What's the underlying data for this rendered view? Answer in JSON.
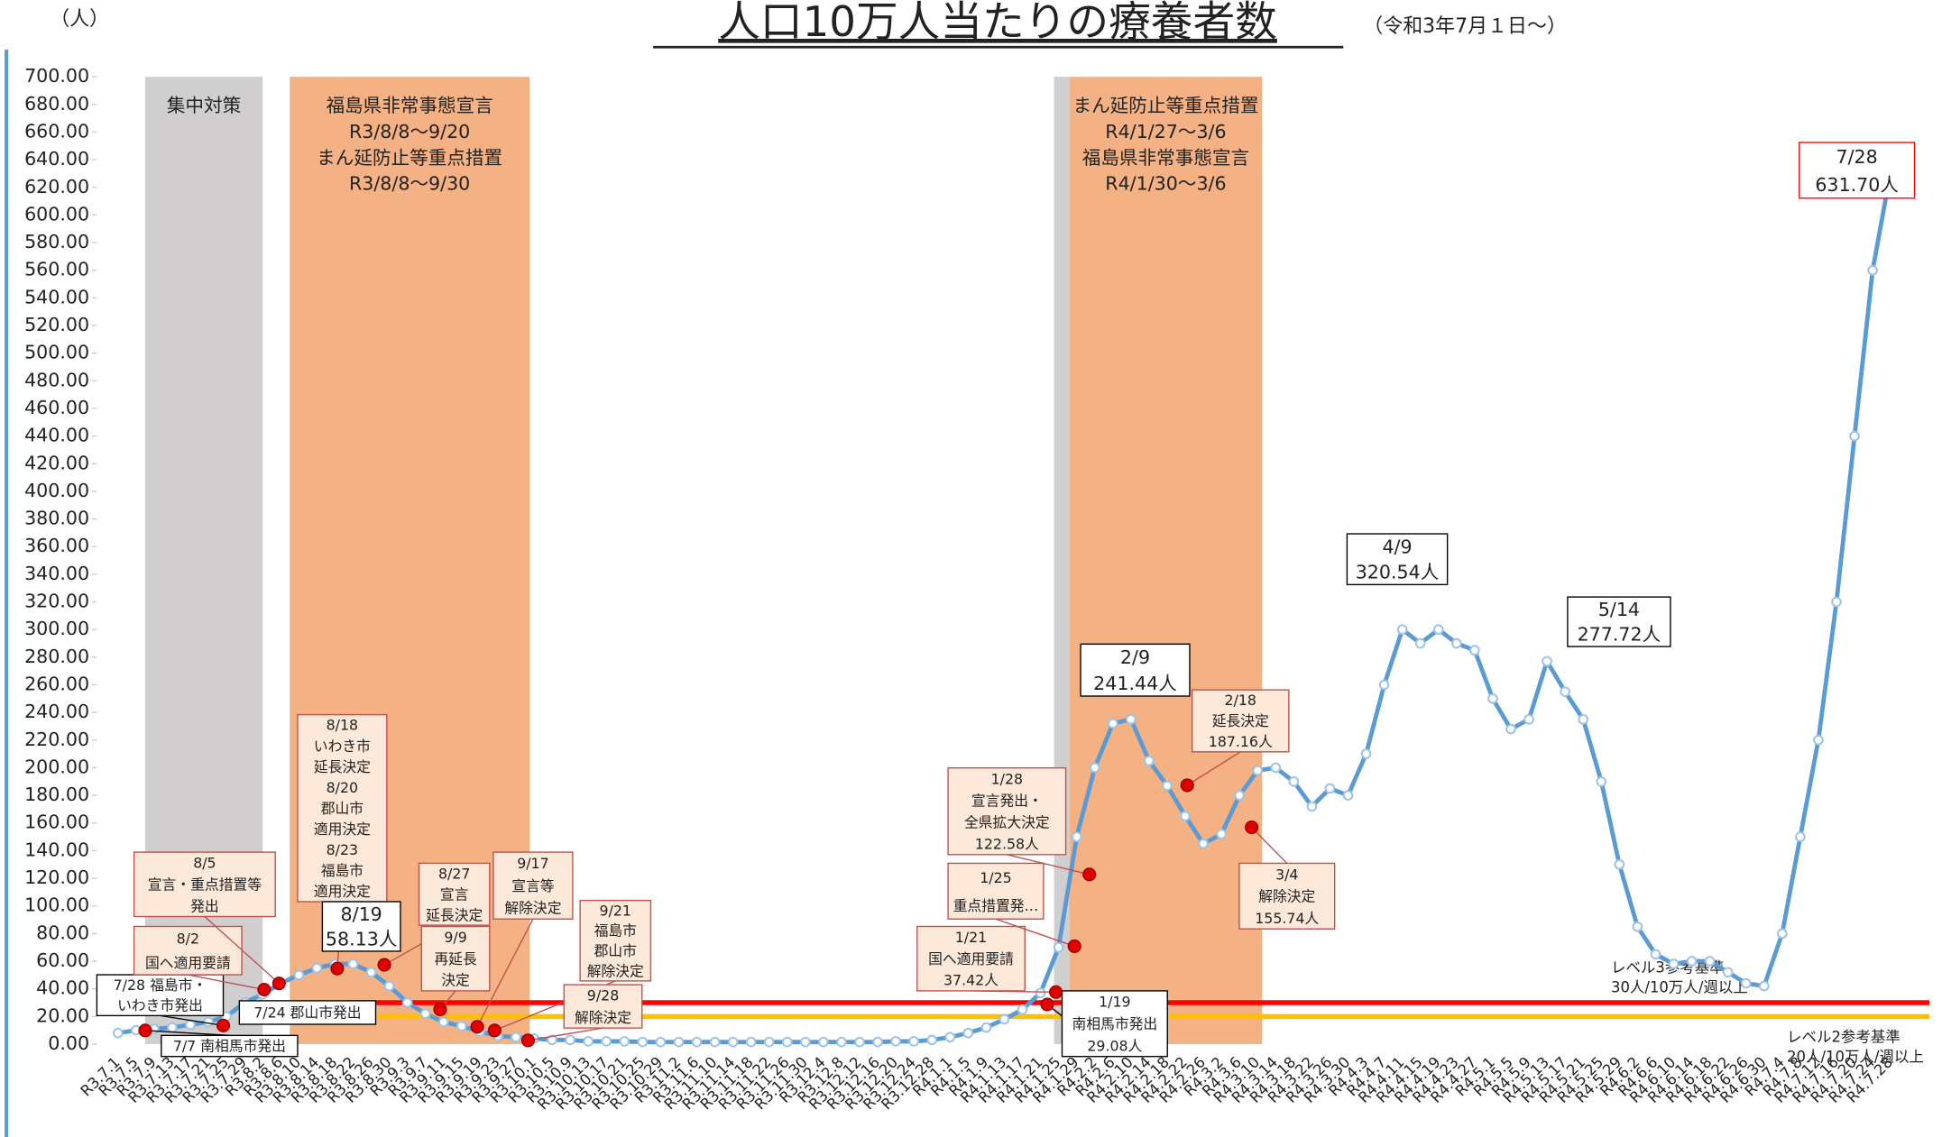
{
  "chart_data": {
    "type": "line",
    "title": "人口10万人当たりの療養者数",
    "subtitle": "（令和3年7月１日～）",
    "y_unit": "（人）",
    "categories": [
      "R3.7.1",
      "R3.7.5",
      "R3.7.9",
      "R3.7.13",
      "R3.7.17",
      "R3.7.21",
      "R3.7.25",
      "R3.7.29",
      "R3.8.2",
      "R3.8.6",
      "R3.8.10",
      "R3.8.14",
      "R3.8.18",
      "R3.8.22",
      "R3.8.26",
      "R3.8.30",
      "R3.9.3",
      "R3.9.7",
      "R3.9.11",
      "R3.9.15",
      "R3.9.19",
      "R3.9.23",
      "R3.9.27",
      "R3.10.1",
      "R3.10.5",
      "R3.10.9",
      "R3.10.13",
      "R3.10.17",
      "R3.10.21",
      "R3.10.25",
      "R3.10.29",
      "R3.11.2",
      "R3.11.6",
      "R3.11.10",
      "R3.11.14",
      "R3.11.18",
      "R3.11.22",
      "R3.11.26",
      "R3.11.30",
      "R3.12.4",
      "R3.12.8",
      "R3.12.12",
      "R3.12.16",
      "R3.12.20",
      "R3.12.24",
      "R3.12.28",
      "R4.1.1",
      "R4.1.5",
      "R4.1.9",
      "R4.1.13",
      "R4.1.17",
      "R4.1.21",
      "R4.1.25",
      "R4.1.29",
      "R4.2.2",
      "R4.2.6",
      "R4.2.10",
      "R4.2.14",
      "R4.2.18",
      "R4.2.22",
      "R4.2.26",
      "R4.3.2",
      "R4.3.6",
      "R4.3.10",
      "R4.3.14",
      "R4.3.18",
      "R4.3.22",
      "R4.3.26",
      "R4.3.30",
      "R4.4.3",
      "R4.4.7",
      "R4.4.11",
      "R4.4.15",
      "R4.4.19",
      "R4.4.23",
      "R4.4.27",
      "R4.5.1",
      "R4.5.5",
      "R4.5.9",
      "R4.5.13",
      "R4.5.17",
      "R4.5.21",
      "R4.5.25",
      "R4.5.29",
      "R4.6.2",
      "R4.6.6",
      "R4.6.10",
      "R4.6.14",
      "R4.6.18",
      "R4.6.22",
      "R4.6.26",
      "R4.6.30",
      "R4.7.4",
      "R4.7.8",
      "R4.7.12",
      "R4.7.16",
      "R4.7.20",
      "R4.7.24",
      "R4.7.28"
    ],
    "series": [
      {
        "name": "療養者数",
        "color": "#5b9bd5",
        "values": [
          8,
          10,
          11,
          12,
          14,
          16,
          20,
          30,
          36,
          44,
          50,
          55,
          58,
          58,
          52,
          42,
          30,
          22,
          16,
          13,
          9,
          6,
          5,
          4,
          3,
          3,
          2,
          2,
          2,
          1.5,
          1.5,
          1.5,
          1.5,
          1.5,
          1.5,
          1.5,
          1.5,
          1.5,
          1.5,
          1.5,
          1.5,
          1.5,
          1.5,
          2,
          2,
          3,
          5,
          8,
          12,
          18,
          25,
          37,
          70,
          150,
          200,
          232,
          235,
          205,
          187,
          165,
          145,
          152,
          180,
          198,
          200,
          190,
          172,
          185,
          180,
          210,
          260,
          300,
          290,
          300,
          290,
          285,
          250,
          228,
          235,
          277,
          255,
          235,
          190,
          130,
          85,
          65,
          58,
          60,
          60,
          52,
          44,
          42,
          80,
          150,
          220,
          320,
          440,
          560,
          631.7
        ]
      }
    ],
    "ylim": [
      0,
      700
    ],
    "yticks": [
      {
        "value": 0,
        "label": "0.00"
      },
      {
        "value": 20,
        "label": "20.00"
      },
      {
        "value": 40,
        "label": "40.00"
      },
      {
        "value": 60,
        "label": "60.00"
      },
      {
        "value": 80,
        "label": "80.00"
      },
      {
        "value": 100,
        "label": "100.00"
      },
      {
        "value": 120,
        "label": "120.00"
      },
      {
        "value": 140,
        "label": "140.00"
      },
      {
        "value": 160,
        "label": "160.00"
      },
      {
        "value": 180,
        "label": "180.00"
      },
      {
        "value": 200,
        "label": "200.00"
      },
      {
        "value": 220,
        "label": "220.00"
      },
      {
        "value": 240,
        "label": "240.00"
      },
      {
        "value": 260,
        "label": "260.00"
      },
      {
        "value": 280,
        "label": "280.00"
      },
      {
        "value": 300,
        "label": "300.00"
      },
      {
        "value": 320,
        "label": "320.00"
      },
      {
        "value": 340,
        "label": "340.00"
      },
      {
        "value": 360,
        "label": "360.00"
      },
      {
        "value": 380,
        "label": "380.00"
      },
      {
        "value": 400,
        "label": "400.00"
      },
      {
        "value": 420,
        "label": "420.00"
      },
      {
        "value": 440,
        "label": "440.00"
      },
      {
        "value": 460,
        "label": "460.00"
      },
      {
        "value": 480,
        "label": "480.00"
      },
      {
        "value": 500,
        "label": "500.00"
      },
      {
        "value": 520,
        "label": "520.00"
      },
      {
        "value": 540,
        "label": "540.00"
      },
      {
        "value": 560,
        "label": "560.00"
      },
      {
        "value": 580,
        "label": "580.00"
      },
      {
        "value": 600,
        "label": "600.00"
      },
      {
        "value": 620,
        "label": "620.00"
      },
      {
        "value": 640,
        "label": "640.00"
      },
      {
        "value": 660,
        "label": "660.00"
      },
      {
        "value": 680,
        "label": "680.00"
      },
      {
        "value": 700,
        "label": "700.00"
      }
    ],
    "reference_lines": [
      {
        "value": 30,
        "color": "#ff0000",
        "text": [
          "レベル3参考基準",
          "30人/10万人/週以上"
        ]
      },
      {
        "value": 20,
        "color": "#ffc000",
        "text": [
          "レベル2参考基準",
          "20人/10万人/週以上"
        ]
      }
    ],
    "bands": [
      {
        "start": 1.5,
        "end": 8,
        "color": "#d0cece",
        "text": [
          "集中対策"
        ]
      },
      {
        "start": 9.5,
        "end": 22.75,
        "color": "#f4b183",
        "text": [
          "福島県非常事態宣言",
          "R3/8/8～9/20",
          "まん延防止等重点措置",
          "R3/8/8～9/30"
        ]
      },
      {
        "start": 51.75,
        "end": 52.6,
        "color": "#d0cece",
        "text": []
      },
      {
        "start": 52.6,
        "end": 63.25,
        "color": "#f4b183",
        "text": [
          "まん延防止等重点措置",
          "R4/1/27～3/6",
          "福島県非常事態宣言",
          "R4/1/30～3/6"
        ]
      }
    ],
    "annotations": [
      {
        "text": [
          "7/7 南相馬市発出"
        ],
        "fill": "#ffffff",
        "border": "#000000"
      },
      {
        "text": [
          "7/28 福島市・",
          "いわき市発出"
        ],
        "fill": "#ffffff",
        "border": "#000000"
      },
      {
        "text": [
          "7/24 郡山市発出"
        ],
        "fill": "#ffffff",
        "border": "#000000"
      },
      {
        "text": [
          "8/2",
          "国へ適用要請"
        ],
        "fill": "#fde9d9",
        "border": "#c0504d"
      },
      {
        "text": [
          "8/5",
          "宣言・重点措置等",
          "発出"
        ],
        "fill": "#fde9d9",
        "border": "#c0504d"
      },
      {
        "text": [
          "8/18",
          "いわき市",
          "延長決定",
          "8/20",
          "郡山市",
          "適用決定",
          "8/23",
          "福島市",
          "適用決定"
        ],
        "fill": "#fde9d9",
        "border": "#c0504d"
      },
      {
        "text": [
          "8/19",
          "58.13人"
        ],
        "fill": "#ffffff",
        "border": "#000000"
      },
      {
        "text": [
          "8/27",
          "宣言",
          "延長決定"
        ],
        "fill": "#fde9d9",
        "border": "#c0504d"
      },
      {
        "text": [
          "9/9",
          "再延長",
          "決定"
        ],
        "fill": "#fde9d9",
        "border": "#c0504d"
      },
      {
        "text": [
          "9/17",
          "宣言等",
          "解除決定"
        ],
        "fill": "#fde9d9",
        "border": "#c0504d"
      },
      {
        "text": [
          "9/21",
          "福島市",
          "郡山市",
          "解除決定"
        ],
        "fill": "#fde9d9",
        "border": "#c0504d"
      },
      {
        "text": [
          "9/28",
          "解除決定"
        ],
        "fill": "#fde9d9",
        "border": "#c0504d"
      },
      {
        "text": [
          "1/19",
          "南相馬市発出",
          "29.08人"
        ],
        "fill": "#ffffff",
        "border": "#000000"
      },
      {
        "text": [
          "1/21",
          "国へ適用要請",
          "37.42人"
        ],
        "fill": "#fde9d9",
        "border": "#c0504d"
      },
      {
        "text": [
          "1/25",
          "重点措置発…"
        ],
        "fill": "#fde9d9",
        "border": "#c0504d"
      },
      {
        "text": [
          "1/28",
          "宣言発出・",
          "全県拡大決定",
          "122.58人"
        ],
        "fill": "#fde9d9",
        "border": "#c0504d"
      },
      {
        "text": [
          "2/9",
          "241.44人"
        ],
        "fill": "#ffffff",
        "border": "#000000"
      },
      {
        "text": [
          "2/18",
          "延長決定",
          "187.16人"
        ],
        "fill": "#fde9d9",
        "border": "#c0504d"
      },
      {
        "text": [
          "3/4",
          "解除決定",
          "155.74人"
        ],
        "fill": "#fde9d9",
        "border": "#c0504d"
      },
      {
        "text": [
          "4/9",
          "320.54人"
        ],
        "fill": "#ffffff",
        "border": "#000000"
      },
      {
        "text": [
          "5/14",
          "277.72人"
        ],
        "fill": "#ffffff",
        "border": "#000000"
      },
      {
        "text": [
          "7/28",
          "631.70人"
        ],
        "fill": "#ffffff",
        "border": "#ff0000"
      }
    ]
  }
}
